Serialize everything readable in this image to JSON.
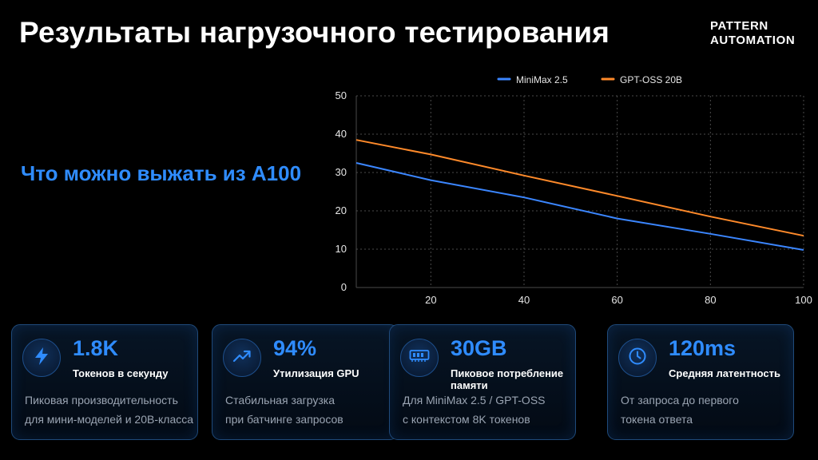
{
  "header": {
    "title": "Результаты нагрузочного тестирования",
    "brand_line1": "PATTERN",
    "brand_line2": "AUTOMATION",
    "subtitle": "Что можно выжать из A100"
  },
  "colors": {
    "accent": "#2f8cff",
    "series_minimax": "#3b86ff",
    "series_gptoss": "#ff8a2a",
    "grid": "#4a4a4a"
  },
  "chart_data": {
    "type": "line",
    "title": "",
    "xlabel": "",
    "ylabel": "",
    "xlim": [
      4,
      100
    ],
    "ylim": [
      0,
      50
    ],
    "x_ticks": [
      20,
      40,
      60,
      80,
      100
    ],
    "y_ticks": [
      0,
      10,
      20,
      30,
      40,
      50
    ],
    "grid": true,
    "legend": "top-center",
    "series": [
      {
        "name": "MiniMax 2.5",
        "color": "#3b86ff",
        "x": [
          4,
          20,
          40,
          60,
          80,
          100
        ],
        "y": [
          32.5,
          28,
          23.5,
          18,
          14,
          9.8
        ]
      },
      {
        "name": "GPT-OSS 20B",
        "color": "#ff8a2a",
        "x": [
          4,
          20,
          40,
          60,
          80,
          100
        ],
        "y": [
          38.5,
          34.7,
          29.2,
          23.9,
          18.5,
          13.5
        ]
      }
    ]
  },
  "cards": [
    {
      "icon": "lightning-icon",
      "value": "1.8K",
      "label": "Токенов в секунду",
      "desc_line1": "Пиковая производительность",
      "desc_line2": "для мини-моделей и 20B-класса"
    },
    {
      "icon": "trend-up-icon",
      "value": "94%",
      "label": "Утилизация GPU",
      "desc_line1": "Стабильная загрузка",
      "desc_line2": "при батчинге запросов"
    },
    {
      "icon": "memory-icon",
      "value": "30GB",
      "label": "Пиковое потребление памяти",
      "desc_line1": "Для MiniMax 2.5 / GPT-OSS",
      "desc_line2": "с контекстом 8K токенов"
    },
    {
      "icon": "clock-icon",
      "value": "120ms",
      "label": "Средняя латентность",
      "desc_line1": "От запроса до первого",
      "desc_line2": "токена ответа"
    }
  ]
}
